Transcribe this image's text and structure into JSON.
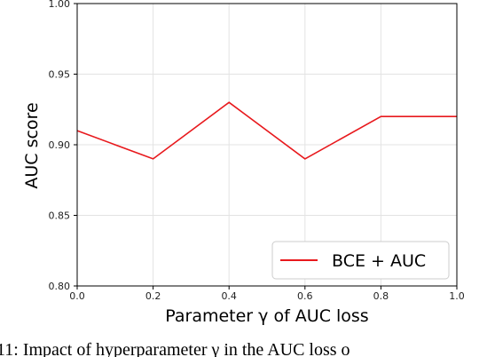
{
  "chart_data": {
    "type": "line",
    "x": [
      0.0,
      0.2,
      0.4,
      0.6,
      0.8,
      1.0
    ],
    "series": [
      {
        "name": "BCE + AUC",
        "color": "#e8191d",
        "values": [
          0.91,
          0.89,
          0.93,
          0.89,
          0.92,
          0.92
        ]
      }
    ],
    "xlabel": "Parameter γ of AUC loss",
    "ylabel": "AUC score",
    "xlim": [
      0.0,
      1.0
    ],
    "ylim": [
      0.8,
      1.0
    ],
    "xticks": [
      "0.0",
      "0.2",
      "0.4",
      "0.6",
      "0.8",
      "1.0"
    ],
    "yticks": [
      "0.80",
      "0.85",
      "0.90",
      "0.95",
      "1.00"
    ],
    "grid": true,
    "legend_position": "lower-right"
  },
  "caption": "11: Impact of hyperparameter γ in the AUC loss o"
}
